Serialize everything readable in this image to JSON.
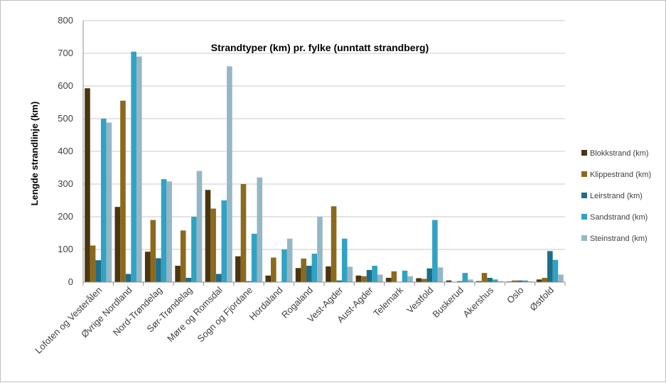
{
  "chart_data": {
    "type": "bar",
    "title": "Strandtyper (km) pr. fylke (unntatt strandberg)",
    "xlabel": "",
    "ylabel": "Lengde strandlinje (km)",
    "ylim": [
      0,
      800
    ],
    "yticks": [
      0,
      100,
      200,
      300,
      400,
      500,
      600,
      700,
      800
    ],
    "grid": true,
    "legend_position": "right",
    "categories": [
      "Lofoten og Vesterålen",
      "Øvrige Nordland",
      "Nord-Trøndelag",
      "Sør-Trøndelag",
      "Møre og Romsdal",
      "Sogn og Fjordane",
      "Hordaland",
      "Rogaland",
      "Vest-Agder",
      "Aust-Agder",
      "Telemark",
      "Vestfold",
      "Buskerud",
      "Akershus",
      "Oslo",
      "Østfold"
    ],
    "series": [
      {
        "name": "Blokkstrand (km)",
        "color": "#4a3510",
        "values": [
          593,
          230,
          93,
          50,
          282,
          79,
          20,
          43,
          48,
          20,
          13,
          12,
          5,
          3,
          2,
          8
        ]
      },
      {
        "name": "Klippestrand (km)",
        "color": "#8c6a1c",
        "values": [
          112,
          555,
          190,
          158,
          225,
          300,
          75,
          72,
          232,
          18,
          33,
          10,
          0,
          28,
          5,
          13
        ]
      },
      {
        "name": "Leirstrand (km)",
        "color": "#1e6e88",
        "values": [
          67,
          25,
          73,
          13,
          25,
          3,
          0,
          50,
          5,
          37,
          0,
          42,
          3,
          13,
          5,
          95
        ]
      },
      {
        "name": "Sandstrand (km)",
        "color": "#31a2c4",
        "values": [
          500,
          705,
          315,
          200,
          250,
          148,
          100,
          87,
          133,
          50,
          35,
          190,
          28,
          8,
          5,
          68
        ]
      },
      {
        "name": "Steinstrand (km)",
        "color": "#93b7c5",
        "values": [
          488,
          690,
          308,
          340,
          660,
          320,
          133,
          200,
          47,
          23,
          18,
          45,
          8,
          3,
          2,
          23
        ]
      }
    ]
  }
}
